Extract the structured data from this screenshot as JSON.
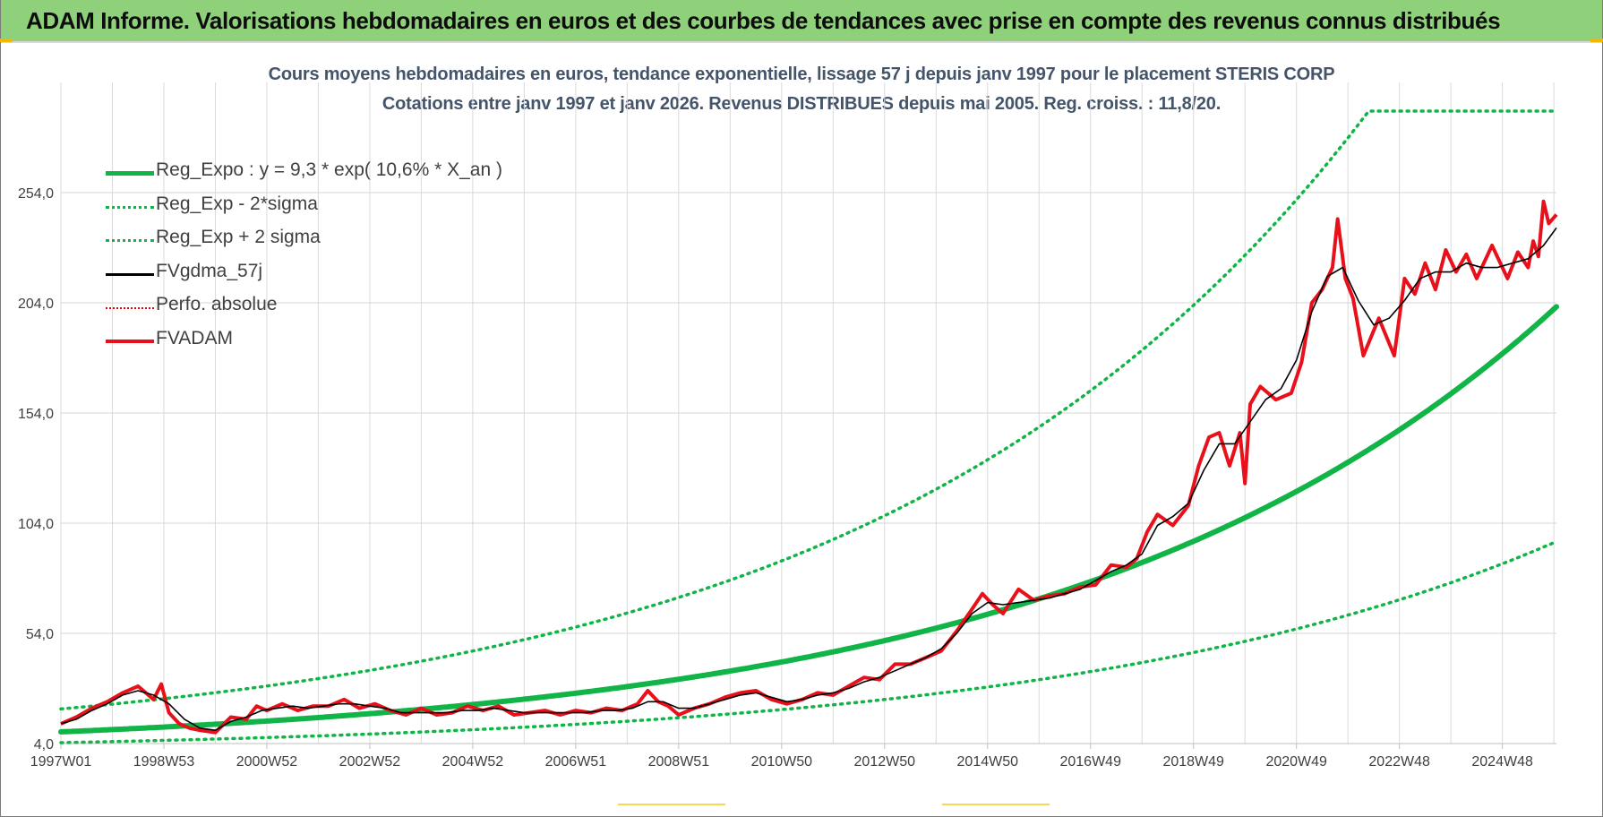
{
  "header": {
    "title": "ADAM Informe. Valorisations hebdomadaires en euros et des courbes de tendances avec prise en compte des revenus connus distribués"
  },
  "chart_data": {
    "type": "line",
    "title_line1": "Cours moyens hebdomadaires en euros, tendance exponentielle, lissage 57 j depuis janv 1997 pour le placement STERIS CORP",
    "title_line2": "Cotations entre janv 1997 et janv 2026. Revenus DISTRIBUES depuis mai 2005.  Reg. croiss. : 11,8/20.",
    "xlabel": "",
    "ylabel": "",
    "x_range": [
      1997.0,
      2026.05
    ],
    "ylim": [
      4.0,
      304.0
    ],
    "y_ticks": [
      4.0,
      54.0,
      104.0,
      154.0,
      204.0,
      254.0
    ],
    "y_tick_labels": [
      "4,0",
      "54,0",
      "104,0",
      "154,0",
      "204,0",
      "254,0"
    ],
    "x_ticks": [
      1997.0,
      1999.0,
      2001.0,
      2003.0,
      2005.0,
      2007.0,
      2009.0,
      2011.0,
      2013.0,
      2015.0,
      2017.0,
      2019.0,
      2021.0,
      2023.0,
      2025.0
    ],
    "x_tick_labels": [
      "1997W01",
      "1998W53",
      "2000W52",
      "2002W52",
      "2004W52",
      "2006W51",
      "2008W51",
      "2010W50",
      "2012W50",
      "2014W50",
      "2016W49",
      "2018W49",
      "2020W49",
      "2022W48",
      "2024W48"
    ],
    "grid": true,
    "legend_position": "top-left",
    "legend": [
      {
        "label": "Reg_Expo : y = 9,3 * exp( 10,6% *  X_an )",
        "style": "solid-thick",
        "color": "#10b447"
      },
      {
        "label": "Reg_Exp - 2*sigma",
        "style": "dotted",
        "color": "#10b447"
      },
      {
        "label": "Reg_Exp + 2 sigma",
        "style": "dotted",
        "color": "#10b447"
      },
      {
        "label": "FVgdma_57j",
        "style": "solid-thin",
        "color": "#000000"
      },
      {
        "label": "Perfo. absolue",
        "style": "dotted-thin",
        "color": "#e00000"
      },
      {
        "label": "FVADAM",
        "style": "solid-thick",
        "color": "#e8101a"
      }
    ],
    "series": [
      {
        "name": "Reg_Expo : y = 9,3 * exp( 10,6% *  X_an )",
        "kind": "exp",
        "a": 9.3,
        "b": 0.106,
        "x0": 1997.0,
        "x_end": 2026.05,
        "color": "#10b447"
      },
      {
        "name": "Reg_Exp - 2*sigma",
        "kind": "exp",
        "a": 4.4,
        "b": 0.106,
        "x0": 1997.0,
        "x_end": 2026.05,
        "color": "#10b447"
      },
      {
        "name": "Reg_Exp + 2 sigma",
        "kind": "exp",
        "a": 19.7,
        "b": 0.106,
        "x0": 1997.0,
        "x_end": 2026.05,
        "cap": 291.0,
        "color": "#10b447"
      },
      {
        "name": "FVADAM",
        "color": "#e8101a",
        "x": [
          1997.0,
          1997.3,
          1997.6,
          1997.9,
          1998.2,
          1998.5,
          1998.8,
          1998.95,
          1999.1,
          1999.3,
          1999.5,
          1999.7,
          2000.0,
          2000.3,
          2000.6,
          2000.8,
          2001.0,
          2001.3,
          2001.6,
          2001.9,
          2002.2,
          2002.5,
          2002.8,
          2003.1,
          2003.4,
          2003.7,
          2004.0,
          2004.3,
          2004.6,
          2004.9,
          2005.2,
          2005.5,
          2005.8,
          2006.1,
          2006.4,
          2006.7,
          2007.0,
          2007.3,
          2007.6,
          2007.9,
          2008.2,
          2008.4,
          2008.6,
          2008.8,
          2009.0,
          2009.3,
          2009.6,
          2009.9,
          2010.2,
          2010.5,
          2010.8,
          2011.1,
          2011.4,
          2011.7,
          2012.0,
          2012.3,
          2012.6,
          2012.9,
          2013.2,
          2013.5,
          2013.8,
          2014.1,
          2014.4,
          2014.7,
          2014.9,
          2015.1,
          2015.3,
          2015.6,
          2015.9,
          2016.2,
          2016.5,
          2016.8,
          2017.1,
          2017.4,
          2017.7,
          2017.9,
          2018.1,
          2018.3,
          2018.6,
          2018.9,
          2019.1,
          2019.3,
          2019.5,
          2019.7,
          2019.9,
          2020.0,
          2020.1,
          2020.3,
          2020.6,
          2020.9,
          2021.1,
          2021.3,
          2021.5,
          2021.7,
          2021.8,
          2021.95,
          2022.1,
          2022.3,
          2022.6,
          2022.9,
          2023.1,
          2023.3,
          2023.5,
          2023.7,
          2023.9,
          2024.1,
          2024.3,
          2024.5,
          2024.8,
          2025.1,
          2025.3,
          2025.5,
          2025.6,
          2025.7,
          2025.8,
          2025.9,
          2026.05
        ],
        "values": [
          13.0,
          16.0,
          20.0,
          23.0,
          27.0,
          30.0,
          24.0,
          31.0,
          18.0,
          13.0,
          11.0,
          10.0,
          9.0,
          16.0,
          15.0,
          21.0,
          19.0,
          22.0,
          19.0,
          21.0,
          21.0,
          24.0,
          20.0,
          22.0,
          19.0,
          17.0,
          20.0,
          17.0,
          18.0,
          21.0,
          19.0,
          21.0,
          17.0,
          18.0,
          19.0,
          17.0,
          19.0,
          18.0,
          20.0,
          19.0,
          22.0,
          28.0,
          23.0,
          21.0,
          17.0,
          20.0,
          22.0,
          25.0,
          27.0,
          28.0,
          24.0,
          22.0,
          24.0,
          27.0,
          26.0,
          30.0,
          34.0,
          33.0,
          40.0,
          40.0,
          43.0,
          46.0,
          55.0,
          65.0,
          72.0,
          67.0,
          63.0,
          74.0,
          69.0,
          71.0,
          72.0,
          75.0,
          76.0,
          85.0,
          84.0,
          88.0,
          100.0,
          108.0,
          103.0,
          112.0,
          130.0,
          143.0,
          145.0,
          130.0,
          145.0,
          122.0,
          158.0,
          166.0,
          160.0,
          163.0,
          177.0,
          204.0,
          210.0,
          220.0,
          242.0,
          215.0,
          206.0,
          180.0,
          197.0,
          180.0,
          215.0,
          208.0,
          222.0,
          210.0,
          228.0,
          218.0,
          226.0,
          215.0,
          230.0,
          215.0,
          227.0,
          220.0,
          232.0,
          225.0,
          250.0,
          240.0,
          244.0
        ]
      },
      {
        "name": "FVgdma_57j",
        "color": "#000000",
        "x": [
          1997.0,
          1997.3,
          1997.6,
          1997.9,
          1998.2,
          1998.5,
          1998.8,
          1999.1,
          1999.4,
          1999.7,
          2000.0,
          2000.3,
          2000.6,
          2000.9,
          2001.2,
          2001.5,
          2001.8,
          2002.1,
          2002.4,
          2002.7,
          2003.0,
          2003.3,
          2003.6,
          2003.9,
          2004.2,
          2004.5,
          2004.8,
          2005.1,
          2005.4,
          2005.7,
          2006.0,
          2006.3,
          2006.6,
          2006.9,
          2007.2,
          2007.5,
          2007.8,
          2008.1,
          2008.4,
          2008.7,
          2009.0,
          2009.3,
          2009.6,
          2009.9,
          2010.2,
          2010.5,
          2010.8,
          2011.1,
          2011.4,
          2011.7,
          2012.0,
          2012.3,
          2012.6,
          2012.9,
          2013.2,
          2013.5,
          2013.8,
          2014.1,
          2014.4,
          2014.7,
          2015.0,
          2015.3,
          2015.6,
          2015.9,
          2016.2,
          2016.5,
          2016.8,
          2017.1,
          2017.4,
          2017.7,
          2018.0,
          2018.3,
          2018.6,
          2018.9,
          2019.2,
          2019.5,
          2019.8,
          2020.1,
          2020.4,
          2020.7,
          2021.0,
          2021.3,
          2021.6,
          2021.9,
          2022.2,
          2022.5,
          2022.8,
          2023.1,
          2023.4,
          2023.7,
          2024.0,
          2024.3,
          2024.6,
          2024.9,
          2025.2,
          2025.5,
          2025.8,
          2026.05
        ],
        "values": [
          13.0,
          15.0,
          19.0,
          22.0,
          26.0,
          28.0,
          26.0,
          22.0,
          15.0,
          11.0,
          10.0,
          14.0,
          16.0,
          19.0,
          20.0,
          21.0,
          20.0,
          21.0,
          22.0,
          22.0,
          21.0,
          20.0,
          18.0,
          18.0,
          18.0,
          18.0,
          19.0,
          19.0,
          20.0,
          19.0,
          18.0,
          18.0,
          18.0,
          18.0,
          18.0,
          19.0,
          19.0,
          20.0,
          23.0,
          23.0,
          20.0,
          20.0,
          22.0,
          24.0,
          26.0,
          27.0,
          25.0,
          23.0,
          24.0,
          26.0,
          27.0,
          29.0,
          32.0,
          34.0,
          37.0,
          40.0,
          43.0,
          47.0,
          54.0,
          63.0,
          68.0,
          67.0,
          68.0,
          69.0,
          70.0,
          72.0,
          74.0,
          78.0,
          82.0,
          85.0,
          90.0,
          103.0,
          107.0,
          113.0,
          128.0,
          140.0,
          140.0,
          150.0,
          160.0,
          165.0,
          178.0,
          200.0,
          216.0,
          220.0,
          205.0,
          194.0,
          197.0,
          205.0,
          215.0,
          218.0,
          218.0,
          222.0,
          220.0,
          220.0,
          222.0,
          224.0,
          230.0,
          238.0
        ]
      }
    ]
  }
}
